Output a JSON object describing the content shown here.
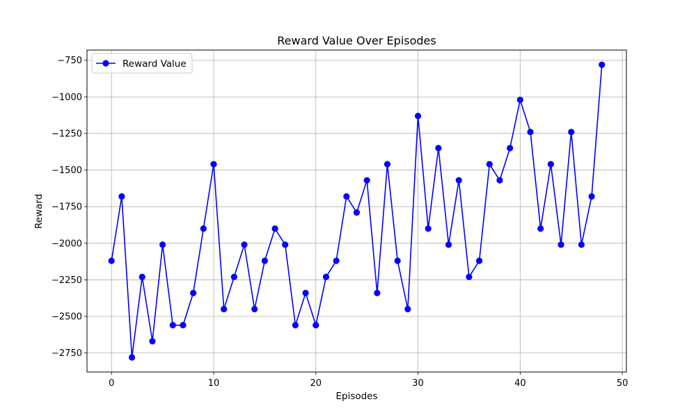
{
  "chart_data": {
    "type": "line",
    "title": "Reward Value Over Episodes",
    "xlabel": "Episodes",
    "ylabel": "Reward",
    "xlim": [
      -2.4,
      50.4
    ],
    "ylim": [
      -2880,
      -680
    ],
    "x_ticks": [
      0,
      10,
      20,
      30,
      40,
      50
    ],
    "x_tick_labels": [
      "0",
      "10",
      "20",
      "30",
      "40",
      "50"
    ],
    "y_ticks": [
      -750,
      -1000,
      -1250,
      -1500,
      -1750,
      -2000,
      -2250,
      -2500,
      -2750
    ],
    "y_tick_labels": [
      "−750",
      "−1000",
      "−1250",
      "−1500",
      "−1750",
      "−2000",
      "−2250",
      "−2500",
      "−2750"
    ],
    "grid": true,
    "legend_position": "upper-left",
    "series": [
      {
        "name": "Reward Value",
        "color": "#0000ff",
        "marker": "circle",
        "x": [
          0,
          1,
          2,
          3,
          4,
          5,
          6,
          7,
          8,
          9,
          10,
          11,
          12,
          13,
          14,
          15,
          16,
          17,
          18,
          19,
          20,
          21,
          22,
          23,
          24,
          25,
          26,
          27,
          28,
          29,
          30,
          31,
          32,
          33,
          34,
          35,
          36,
          37,
          38,
          39,
          40,
          41,
          42,
          43,
          44,
          45,
          46,
          47,
          48
        ],
        "values": [
          -2120,
          -1680,
          -2780,
          -2230,
          -2670,
          -2010,
          -2560,
          -2560,
          -2340,
          -1900,
          -1460,
          -2450,
          -2230,
          -2010,
          -2450,
          -2120,
          -1900,
          -2010,
          -2560,
          -2340,
          -2560,
          -2230,
          -2120,
          -1680,
          -1790,
          -1570,
          -2340,
          -1460,
          -2120,
          -2450,
          -1130,
          -1900,
          -1350,
          -2010,
          -1570,
          -2230,
          -2120,
          -1460,
          -1570,
          -1350,
          -1020,
          -1240,
          -1900,
          -1460,
          -2010,
          -1240,
          -2010,
          -1680,
          -780
        ]
      }
    ]
  }
}
